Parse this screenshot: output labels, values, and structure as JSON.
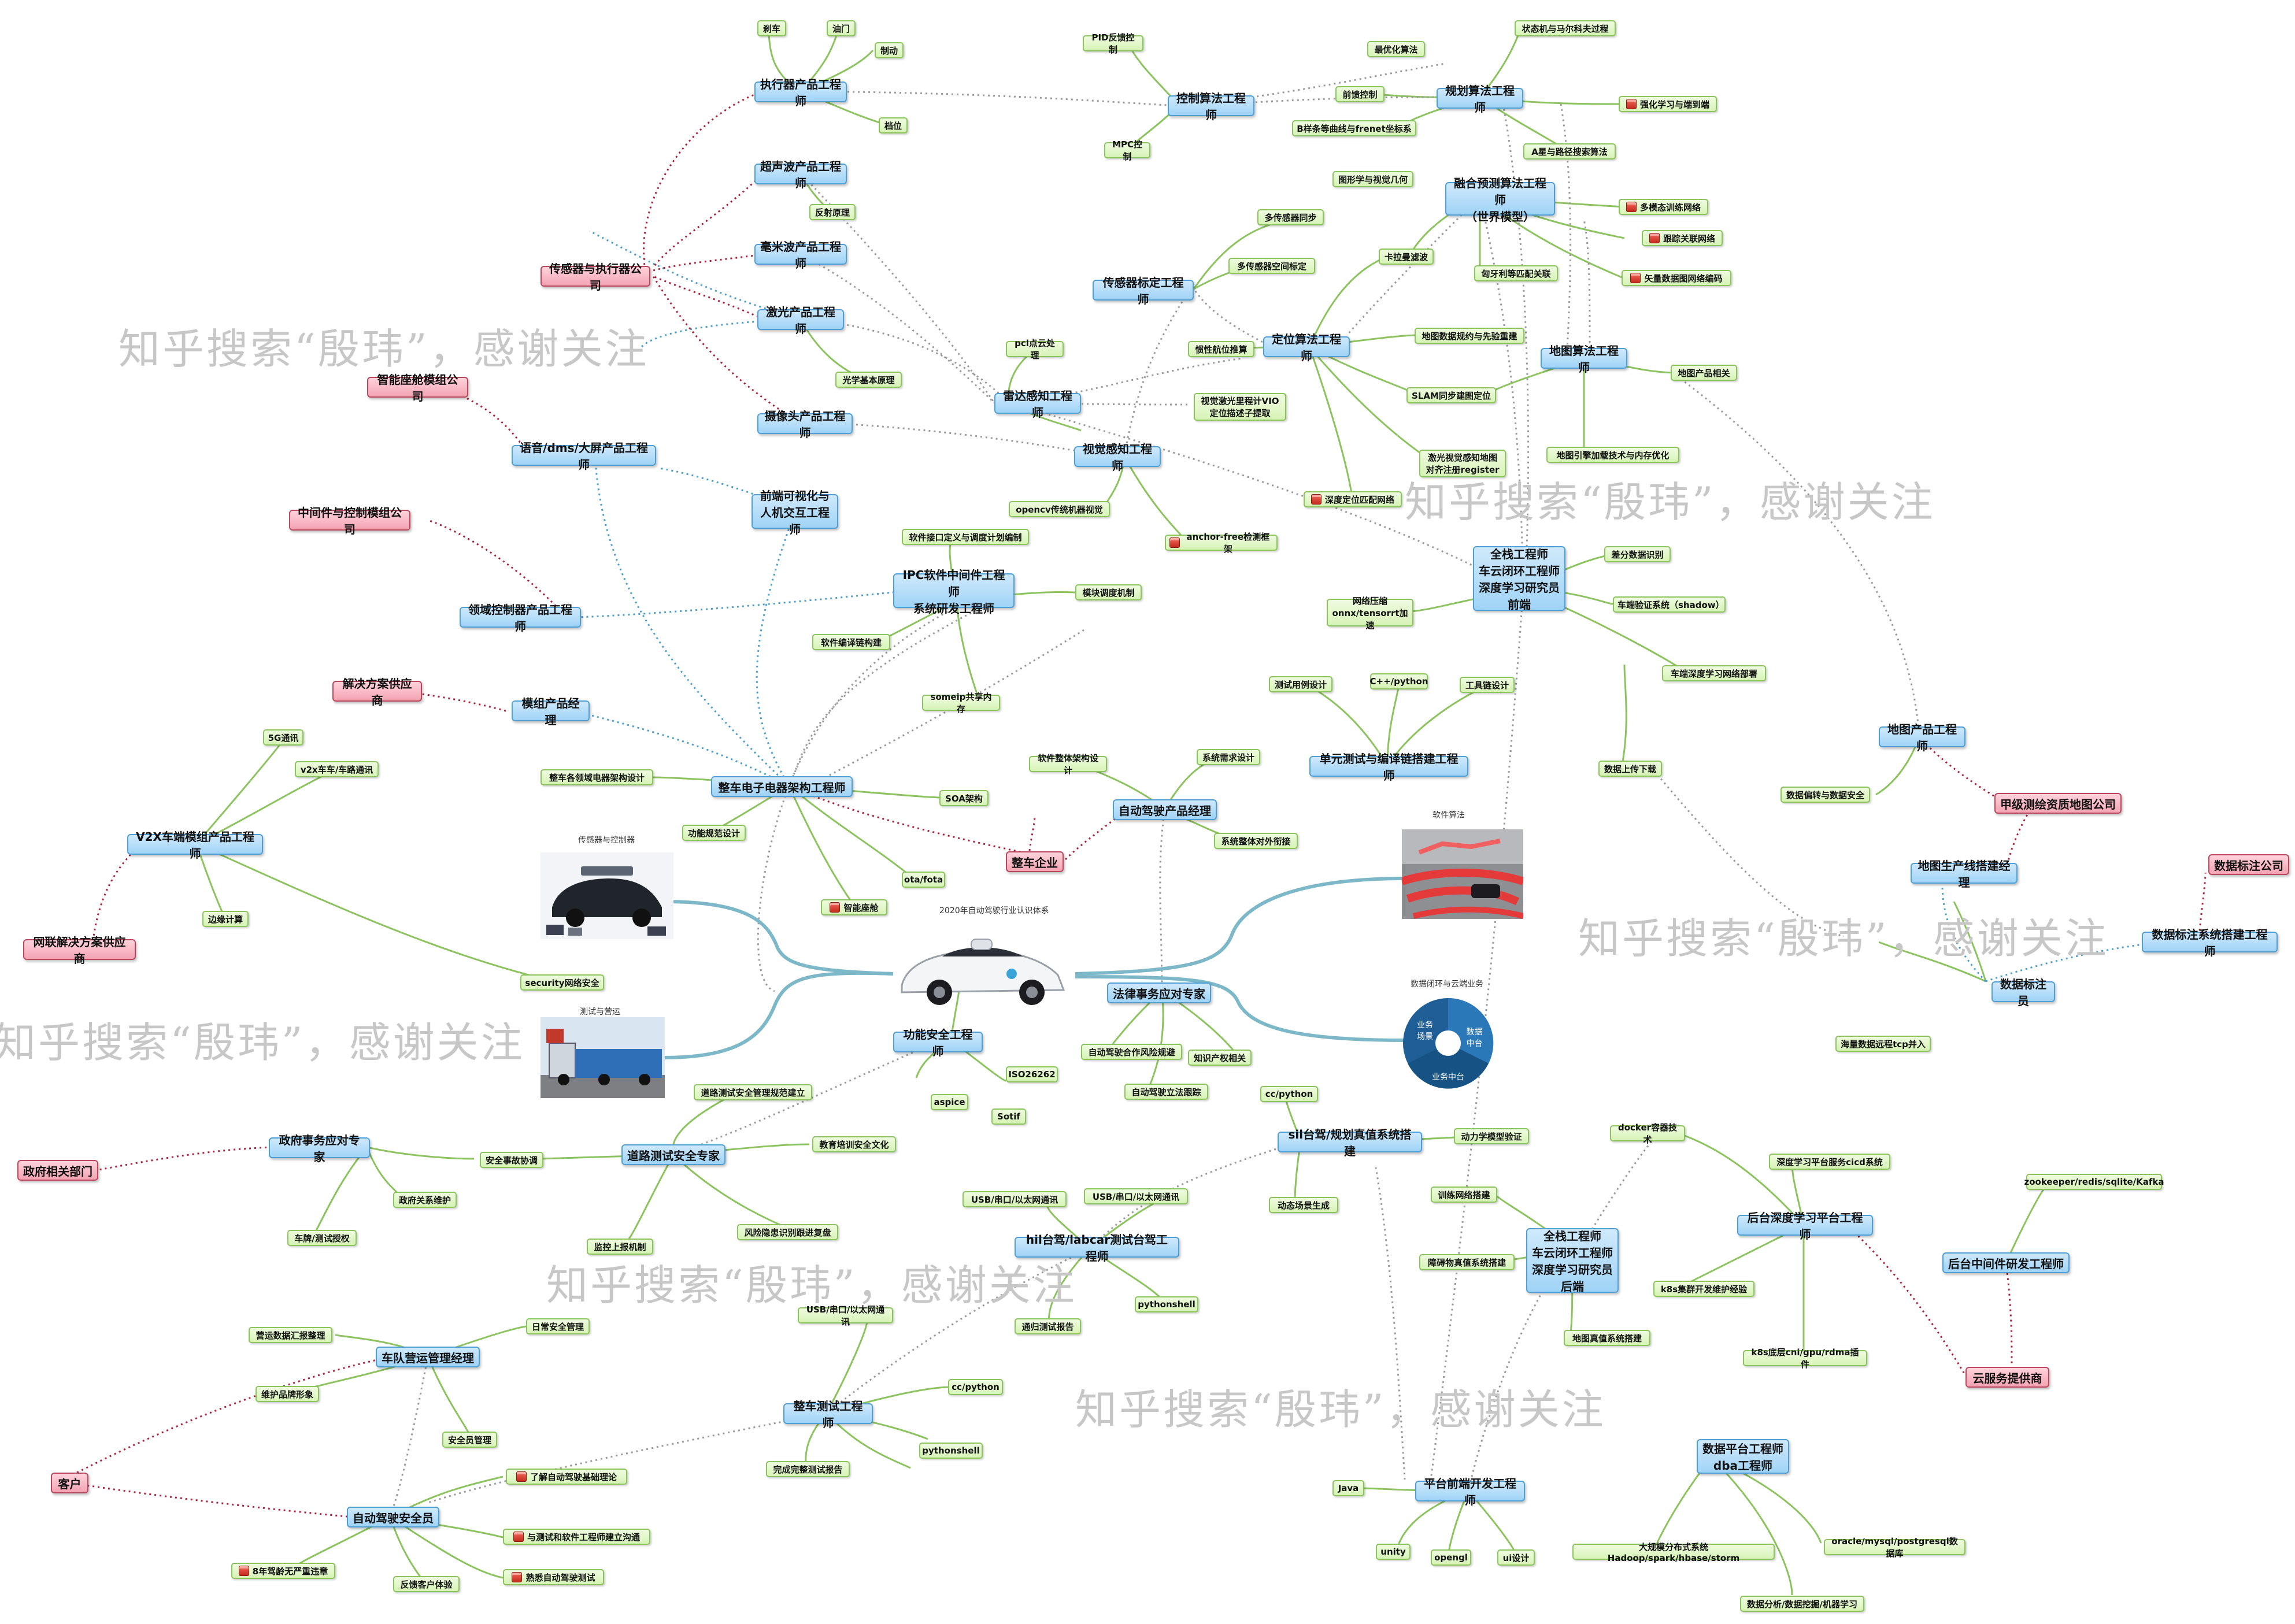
{
  "watermark": "知乎搜索“殷玮”，感谢关注",
  "captions": {
    "sensors": "传感器与控制器",
    "software": "软件算法",
    "system": "2020年自动驾驶行业认识体系",
    "test": "测试与营运",
    "cloud": "数据闭环与云端业务"
  },
  "cloud_pie": {
    "segment_1": "业务\n场景",
    "segment_2": "数据\n中台",
    "segment_3": "业务中台"
  },
  "blue_nodes": {
    "actuator": "执行器产品工程师",
    "ultrasonic": "超声波产品工程师",
    "mmwave": "毫米波产品工程师",
    "lidar": "激光产品工程师",
    "camera": "摄像头产品工程师",
    "control": "控制算法工程师",
    "planning": "规划算法工程师",
    "fusion": "融合预测算法工程师\n（世界模型）",
    "calib": "传感器标定工程师",
    "localization": "定位算法工程师",
    "mapalg": "地图算法工程师",
    "radar": "雷达感知工程师",
    "vision": "视觉感知工程师",
    "fullstack1": "全栈工程师\n车云闭环工程师\n深度学习研究员\n前端",
    "voice": "语音/dms/大屏产品工程师",
    "frontend_hmi": "前端可视化与\n人机交互工程师",
    "ipc": "IPC软件中间件工程师\n系统研发工程师",
    "domain": "领域控制器产品工程师",
    "module": "模组产品经理",
    "ee": "整车电子电器架构工程师",
    "v2x": "V2X车端模组产品工程师",
    "adpm": "自动驾驶产品经理",
    "unittest": "单元测试与编译链搭建工程师",
    "mapprod": "地图产品工程师",
    "mapline": "地图生产线搭建经理",
    "labelplat": "数据标注系统搭建工程师",
    "labeler": "数据标注员",
    "legal": "法律事务应对专家",
    "safety": "功能安全工程师",
    "gov": "政府事务应对专家",
    "roadsafe": "道路测试安全专家",
    "sil": "sil台驾/规划真值系统搭建",
    "hil": "hil台驾/labcar测试台驾工程师",
    "fullstack2": "全栈工程师\n车云闭环工程师\n深度学习研究员\n后端",
    "dlplat": "后台深度学习平台工程师",
    "mwback": "后台中间件研发工程师",
    "fleet": "车队营运管理经理",
    "vehtest": "整车测试工程师",
    "safetydriver": "自动驾驶安全员",
    "dataplat": "数据平台工程师\ndba工程师",
    "platfront": "平台前端开发工程师"
  },
  "pink_nodes": {
    "sensor_co": "传感器与执行器公司",
    "cockpit_co": "智能座舱模组公司",
    "mw_co": "中间件与控制模组公司",
    "solution": "解决方案供应商",
    "netsol": "网联解决方案供应商",
    "oem": "整车企业",
    "mapco": "甲级测绘资质地图公司",
    "labelco": "数据标注公司",
    "cloudco": "云服务提供商",
    "govdept": "政府相关部门",
    "client": "客户"
  },
  "green_nodes": {
    "brake": "刹车",
    "throttle": "油门",
    "brake2": "制动",
    "gear": "档位",
    "reflect": "反射原理",
    "optics": "光学基本原理",
    "pid": "PID反馈控制",
    "mpc": "MPC控制",
    "optim": "最优化算法",
    "ff": "前馈控制",
    "bspline": "B样条等曲线与frenet坐标系",
    "graphics": "图形学与视觉几何",
    "markov": "状态机与马尔科夫过程",
    "rl": "强化学习与端到端",
    "astar": "A星与路径搜索算法",
    "mm": "多模态训练网络",
    "trackassoc": "跟踪关联网络",
    "vecmap": "矢量数据图网络编码",
    "hungarian": "匈牙利等匹配关联",
    "kalman": "卡拉曼滤波",
    "sync": "多传感器同步",
    "spatial": "多传感器空间标定",
    "pcl": "pcl点云处理",
    "vio": "视觉激光里程计VIO\n定位描述子提取",
    "ins": "惯性航位推算",
    "mapspec": "地图数据规约与先验重建",
    "slam": "SLAM同步建图定位",
    "lidarvis": "激光视觉感知地图\n对齐注册register",
    "deepmatch": "深度定位匹配网络",
    "mapengine": "地图引擎加载技术与内存优化",
    "maprelated": "地图产品相关",
    "opencv": "opencv传统机器视觉",
    "anchorfree": "anchor-free检测框架",
    "diffcheck": "差分数据识别",
    "shadow": "车端验证系统（shadow）",
    "compress": "网络压缩\nonnx/tensorrt加速",
    "deploy": "车端深度学习网络部署",
    "swiface": "软件接口定义与调度计划编制",
    "sched": "模块调度机制",
    "buildchain": "软件编译链构建",
    "someip": "someip共享内存",
    "eedesign": "整车各领域电器架构设计",
    "soa": "SOA架构",
    "funcspec": "功能规范设计",
    "ota": "ota/fota",
    "smartcab": "智能座舱",
    "swarch": "软件整体架构设计",
    "sysreq": "系统需求设计",
    "sysext": "系统整体对外衔接",
    "testcase": "测试用例设计",
    "cpp": "C++/python",
    "toolchain": "工具链设计",
    "upload": "数据上传下载",
    "g5": "5G通讯",
    "v2xcomm": "v2x车车/车路通讯",
    "edge": "边缘计算",
    "security": "security网络安全",
    "encrypt": "数据偏转与数据安全",
    "tcp": "海量数据远程tcp并入",
    "adrisk": "自动驾驶合作风险规避",
    "ip": "知识产权相关",
    "adlaw": "自动驾驶立法跟踪",
    "aspice": "aspice",
    "iso": "ISO26262",
    "sotif": "Sotif",
    "roadspec": "道路测试安全管理规范建立",
    "govsys": "政府关系维护",
    "permit": "车牌/测试授权",
    "safecoord": "安全事故协调",
    "edu": "教育培训安全文化",
    "monitor": "监控上报机制",
    "risk": "风险隐患识别跟进复盘",
    "ccpy": "cc/python",
    "dyn": "动力学模型验证",
    "dynscene": "动态场景生成",
    "usb1": "USB/串口/以太网通讯",
    "usb2": "USB/串口/以太网通讯",
    "pyshell1": "pythonshell",
    "regress": "通归测试报告",
    "train": "训练网络搭建",
    "obstacle": "障碍物真值系统搭建",
    "mapgt": "地图真值系统搭建",
    "docker": "docker容器技术",
    "cicd": "深度学习平台服务cicd系统",
    "k8s": "k8s集群开发维护经验",
    "k8slow": "k8s底层cni/gpu/rdma插件",
    "zk": "zookeeper/redis/sqlite/Kafka",
    "opsreport": "营运数据汇报整理",
    "daysafe": "日常安全管理",
    "brand": "维护品牌形象",
    "safemgr": "安全员管理",
    "usb3": "USB/串口/以太网通讯",
    "ccpy2": "cc/python",
    "pyshell2": "pythonshell",
    "fullreport": "完成完整测试报告",
    "learnad": "了解自动驾驶基础理论",
    "commeng": "与测试和软件工程师建立沟通",
    "nocrime": "8年驾龄无严重违章",
    "feedback": "反馈客户体验",
    "adtest": "熟悉自动驾驶测试",
    "java": "Java",
    "unity": "unity",
    "opengl": "opengl",
    "ui": "ui设计",
    "bigdata": "大规模分布式系统Hadoop/spark/hbase/storm",
    "sqldb": "oracle/mysql/postgresql数据库",
    "analysis": "数据分析/数据挖掘/机器学习"
  }
}
